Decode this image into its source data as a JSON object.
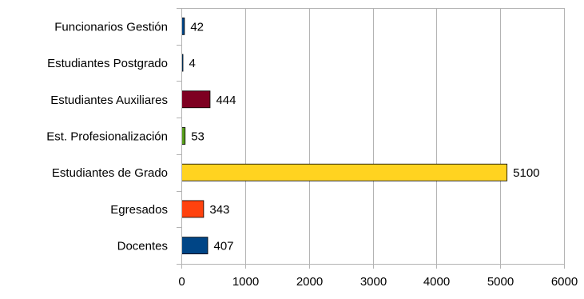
{
  "chart_data": {
    "type": "bar",
    "orientation": "horizontal",
    "title": "",
    "xlabel": "",
    "ylabel": "",
    "xlim": [
      0,
      6000
    ],
    "x_ticks": [
      0,
      1000,
      2000,
      3000,
      4000,
      5000,
      6000
    ],
    "grid": true,
    "legend": "none",
    "categories": [
      "Funcionarios Gestión",
      "Estudiantes Postgrado",
      "Estudiantes Auxiliares",
      "Est. Profesionalización",
      "Estudiantes de Grado",
      "Egresados",
      "Docentes"
    ],
    "values": [
      42,
      4,
      444,
      53,
      5100,
      343,
      407
    ],
    "data_labels": [
      "42",
      "4",
      "444",
      "53",
      "5100",
      "343",
      "407"
    ],
    "colors": [
      "#004586",
      "#004586",
      "#7e0021",
      "#579d1c",
      "#ffd320",
      "#ff420e",
      "#004586"
    ]
  }
}
